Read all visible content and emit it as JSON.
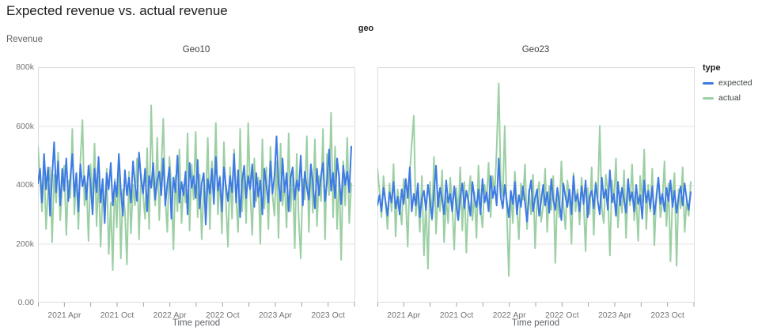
{
  "chart_data": {
    "type": "line",
    "title": "Expected revenue vs. actual revenue",
    "facet_field": "geo",
    "xlabel": "Time period",
    "ylabel": "Revenue",
    "legend_title": "type",
    "grid": "horizontal",
    "x_interval": "weekly",
    "x_domain_months": [
      "2021-01",
      "2024-01"
    ],
    "x_tick_labels": [
      "2021 Apr",
      "2021 Oct",
      "2022 Apr",
      "2022 Oct",
      "2023 Apr",
      "2023 Oct"
    ],
    "y_tick_labels": [
      "0.00",
      "200k",
      "400k",
      "600k",
      "800k"
    ],
    "y_tick_values_k": [
      0,
      200,
      400,
      600,
      800
    ],
    "ylim_k": [
      0,
      800
    ],
    "value_unit": "revenue in thousands (k)",
    "colors": {
      "expected": "#3d7ae4",
      "actual": "#9ccfa4",
      "grid": "#e4e4e4",
      "panel_border": "#dadce0",
      "tick": "#9aa0a6",
      "tick_text": "#757575"
    },
    "facets": [
      {
        "name": "Geo10",
        "series": [
          {
            "name": "expected",
            "color": "#3d7ae4",
            "values_k": [
              405,
              455,
              340,
              505,
              385,
              460,
              295,
              430,
              545,
              375,
              480,
              330,
              455,
              380,
              490,
              345,
              425,
              505,
              360,
              440,
              310,
              470,
              395,
              430,
              350,
              465,
              405,
              300,
              455,
              375,
              495,
              340,
              420,
              270,
              440,
              385,
              475,
              330,
              410,
              360,
              505,
              380,
              295,
              450,
              365,
              425,
              340,
              480,
              400,
              345,
              510,
              420,
              370,
              455,
              310,
              430,
              390,
              475,
              350,
              415,
              445,
              365,
              490,
              330,
              405,
              460,
              285,
              425,
              375,
              500,
              340,
              410,
              365,
              445,
              300,
              475,
              390,
              430,
              355,
              485,
              320,
              405,
              440,
              265,
              420,
              370,
              455,
              335,
              495,
              380,
              425,
              310,
              460,
              395,
              345,
              430,
              375,
              505,
              340,
              450,
              290,
              415,
              465,
              355,
              430,
              385,
              470,
              325,
              440,
              360,
              415,
              300,
              455,
              395,
              340,
              480,
              370,
              430,
              565,
              405,
              345,
              490,
              375,
              440,
              310,
              425,
              460,
              350,
              415,
              380,
              500,
              330,
              445,
              390,
              350,
              470,
              405,
              320,
              455,
              365,
              430,
              475,
              345,
              410,
              520,
              380,
              440,
              355,
              490,
              420,
              335,
              465,
              400,
              445,
              375,
              530
            ]
          },
          {
            "name": "actual",
            "color": "#9ccfa4",
            "values_k": [
              530,
              420,
              310,
              475,
              250,
              390,
              460,
              205,
              435,
              340,
              510,
              280,
              395,
              465,
              230,
              415,
              355,
              590,
              300,
              440,
              250,
              480,
              620,
              330,
              405,
              210,
              470,
              350,
              540,
              260,
              430,
              190,
              380,
              300,
              455,
              165,
              340,
              110,
              420,
              255,
              475,
              150,
              385,
              310,
              130,
              445,
              235,
              400,
              330,
              490,
              215,
              435,
              370,
              285,
              525,
              250,
              670,
              410,
              330,
              560,
              280,
              455,
              625,
              355,
              240,
              495,
              390,
              180,
              430,
              310,
              520,
              270,
              400,
              340,
              575,
              245,
              470,
              350,
              580,
              290,
              435,
              215,
              390,
              330,
              560,
              250,
              480,
              370,
              610,
              300,
              430,
              235,
              545,
              340,
              190,
              460,
              285,
              520,
              355,
              240,
              590,
              310,
              450,
              270,
              610,
              380,
              230,
              490,
              345,
              425,
              200,
              555,
              320,
              460,
              250,
              530,
              365,
              295,
              480,
              220,
              540,
              330,
              410,
              255,
              575,
              310,
              445,
              185,
              505,
              280,
              150,
              420,
              350,
              565,
              240,
              470,
              305,
              555,
              260,
              430,
              345,
              590,
              215,
              505,
              365,
              645,
              290,
              530,
              250,
              440,
              145,
              480,
              330,
              560,
              270,
              405
            ]
          }
        ]
      },
      {
        "name": "Geo23",
        "series": [
          {
            "name": "expected",
            "color": "#3d7ae4",
            "values_k": [
              330,
              365,
              310,
              390,
              345,
              295,
              375,
              340,
              410,
              320,
              360,
              300,
              385,
              335,
              420,
              355,
              460,
              310,
              370,
              330,
              405,
              290,
              355,
              380,
              315,
              400,
              345,
              285,
              375,
              465,
              325,
              390,
              350,
              300,
              415,
              340,
              370,
              310,
              395,
              335,
              280,
              360,
              405,
              320,
              380,
              345,
              295,
              410,
              355,
              325,
              385,
              300,
              420,
              340,
              375,
              310,
              430,
              355,
              395,
              330,
              490,
              360,
              320,
              400,
              345,
              290,
              380,
              335,
              410,
              300,
              365,
              325,
              395,
              340,
              275,
              370,
              415,
              310,
              355,
              385,
              295,
              345,
              400,
              330,
              375,
              305,
              420,
              350,
              315,
              390,
              340,
              280,
              405,
              360,
              325,
              385,
              300,
              430,
              345,
              370,
              310,
              395,
              335,
              415,
              290,
              360,
              380,
              320,
              405,
              345,
              300,
              425,
              355,
              385,
              315,
              450,
              340,
              370,
              295,
              410,
              330,
              390,
              350,
              305,
              420,
              345,
              375,
              310,
              400,
              335,
              365,
              285,
              415,
              340,
              380,
              320,
              395,
              300,
              355,
              425,
              335,
              370,
              310,
              390,
              345,
              415,
              325,
              380,
              305,
              360,
              395,
              330,
              405,
              350,
              315,
              375
            ]
          },
          {
            "name": "actual",
            "color": "#9ccfa4",
            "values_k": [
              455,
              380,
              290,
              430,
              340,
              250,
              405,
              310,
              470,
              225,
              385,
              330,
              265,
              420,
              350,
              190,
              445,
              540,
              635,
              295,
              380,
              240,
              430,
              160,
              345,
              115,
              410,
              280,
              495,
              235,
              375,
              310,
              450,
              205,
              360,
              270,
              425,
              330,
              180,
              390,
              300,
              460,
              245,
              410,
              170,
              355,
              430,
              280,
              375,
              220,
              465,
              320,
              255,
              400,
              345,
              475,
              290,
              430,
              370,
              520,
              745,
              415,
              360,
              600,
              310,
              90,
              380,
              270,
              445,
              330,
              215,
              405,
              350,
              470,
              250,
              385,
              300,
              435,
              185,
              360,
              410,
              275,
              330,
              455,
              240,
              395,
              315,
              430,
              135,
              370,
              290,
              480,
              335,
              250,
              415,
              360,
              200,
              440,
              310,
              385,
              265,
              425,
              345,
              175,
              390,
              300,
              460,
              230,
              410,
              355,
              600,
              320,
              270,
              435,
              380,
              160,
              415,
              340,
              490,
              255,
              375,
              305,
              450,
              220,
              395,
              330,
              470,
              280,
              360,
              210,
              430,
              340,
              520,
              250,
              400,
              310,
              455,
              195,
              370,
              425,
              290,
              345,
              480,
              260,
              405,
              140,
              365,
              440,
              125,
              385,
              320,
              460,
              240,
              350,
              295,
              410
            ]
          }
        ]
      }
    ]
  }
}
